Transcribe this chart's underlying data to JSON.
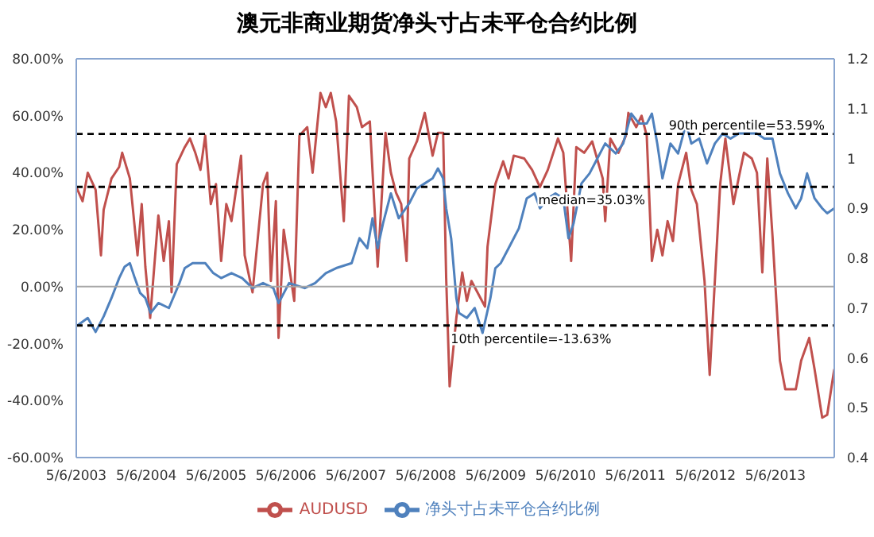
{
  "chart_data": {
    "type": "line",
    "title": "澳元非商业期货净头寸占未平仓合约比例",
    "xlim": [
      "2003-05-06",
      "2014-03-10"
    ],
    "xticks": [
      {
        "value": "2003-05-06",
        "label": "5/6/2003"
      },
      {
        "value": "2004-05-06",
        "label": "5/6/2004"
      },
      {
        "value": "2005-05-06",
        "label": "5/6/2005"
      },
      {
        "value": "2006-05-06",
        "label": "5/6/2006"
      },
      {
        "value": "2007-05-06",
        "label": "5/6/2007"
      },
      {
        "value": "2008-05-06",
        "label": "5/6/2008"
      },
      {
        "value": "2009-05-06",
        "label": "5/6/2009"
      },
      {
        "value": "2010-05-06",
        "label": "5/6/2010"
      },
      {
        "value": "2011-05-06",
        "label": "5/6/2011"
      },
      {
        "value": "2012-05-06",
        "label": "5/6/2012"
      },
      {
        "value": "2013-05-06",
        "label": "5/6/2013"
      }
    ],
    "ylim": [
      -60,
      80
    ],
    "yticks": [
      {
        "value": -60,
        "label": "-60.00%"
      },
      {
        "value": -40,
        "label": "-40.00%"
      },
      {
        "value": -20,
        "label": "-20.00%"
      },
      {
        "value": 0,
        "label": "0.00%"
      },
      {
        "value": 20,
        "label": "20.00%"
      },
      {
        "value": 40,
        "label": "40.00%"
      },
      {
        "value": 60,
        "label": "60.00%"
      },
      {
        "value": 80,
        "label": "80.00%"
      }
    ],
    "y2lim": [
      0.4,
      1.2
    ],
    "y2ticks": [
      0.4,
      0.5,
      0.6,
      0.7,
      0.8,
      0.9,
      1,
      1.1,
      1.2
    ],
    "legend": "bottom",
    "marker": "none",
    "line_style": "solid",
    "ref_lines": [
      {
        "axis": "y",
        "value": 53.59,
        "label": "90th percentile=53.59%",
        "color": "#000000",
        "line_style": "dashed"
      },
      {
        "axis": "y",
        "value": 35.03,
        "label": "median=35.03%",
        "color": "#000000",
        "line_style": "dashed"
      },
      {
        "axis": "y",
        "value": -13.63,
        "label": "10th percentile=-13.63%",
        "color": "#000000",
        "line_style": "dashed"
      },
      {
        "axis": "y",
        "value": 0,
        "color": "#a6a6a6",
        "line_style": "solid"
      }
    ],
    "series": [
      {
        "name": "AUDUSD",
        "color": "#c0504d",
        "axis": "y",
        "x": [
          "2003-05-06",
          "2003-06-08",
          "2003-07-05",
          "2003-08-15",
          "2003-09-12",
          "2003-09-26",
          "2003-11-06",
          "2003-12-16",
          "2004-01-01",
          "2004-02-10",
          "2004-03-21",
          "2004-04-12",
          "2004-05-01",
          "2004-05-26",
          "2004-07-08",
          "2004-08-05",
          "2004-09-01",
          "2004-09-15",
          "2004-10-12",
          "2004-11-23",
          "2004-12-20",
          "2005-01-17",
          "2005-02-13",
          "2005-03-10",
          "2005-04-08",
          "2005-05-05",
          "2005-06-01",
          "2005-06-28",
          "2005-07-25",
          "2005-09-13",
          "2005-10-02",
          "2005-11-12",
          "2006-01-06",
          "2006-01-28",
          "2006-02-16",
          "2006-03-14",
          "2006-03-28",
          "2006-04-24",
          "2006-06-18",
          "2006-07-15",
          "2006-08-25",
          "2006-09-22",
          "2006-11-02",
          "2006-11-30",
          "2006-12-26",
          "2007-01-23",
          "2007-03-04",
          "2007-03-31",
          "2007-05-11",
          "2007-06-07",
          "2007-07-18",
          "2007-08-28",
          "2007-10-08",
          "2007-11-05",
          "2007-12-02",
          "2007-12-29",
          "2008-01-26",
          "2008-02-09",
          "2008-03-20",
          "2008-04-30",
          "2008-06-10",
          "2008-07-08",
          "2008-08-04",
          "2008-08-20",
          "2008-09-07",
          "2008-10-12",
          "2008-11-12",
          "2008-12-06",
          "2008-12-30",
          "2009-03-11",
          "2009-03-24",
          "2009-05-04",
          "2009-06-14",
          "2009-07-12",
          "2009-08-08",
          "2009-10-02",
          "2009-11-12",
          "2009-12-23",
          "2010-02-02",
          "2010-03-27",
          "2010-04-24",
          "2010-06-04",
          "2010-07-01",
          "2010-08-11",
          "2010-09-22",
          "2010-11-16",
          "2010-11-29",
          "2010-12-26",
          "2011-02-06",
          "2011-03-17",
          "2011-03-30",
          "2011-05-10",
          "2011-06-07",
          "2011-07-04",
          "2011-07-31",
          "2011-08-28",
          "2011-09-24",
          "2011-10-21",
          "2011-11-18",
          "2011-12-15",
          "2012-01-26",
          "2012-02-22",
          "2012-03-22",
          "2012-05-01",
          "2012-05-28",
          "2012-06-24",
          "2012-07-22",
          "2012-08-18",
          "2012-09-29",
          "2012-10-26",
          "2012-11-23",
          "2013-01-03",
          "2013-01-30",
          "2013-02-27",
          "2013-03-25",
          "2013-04-21",
          "2013-05-30",
          "2013-06-27",
          "2013-08-21",
          "2013-09-18",
          "2013-10-30",
          "2013-11-27",
          "2014-01-06",
          "2014-02-01",
          "2014-03-10"
        ],
        "values": [
          35,
          30,
          40,
          34,
          11,
          27,
          38,
          42,
          47,
          38,
          11,
          29,
          7,
          -11,
          25,
          9,
          23,
          -2,
          43,
          49,
          52,
          47,
          41,
          53,
          29,
          36,
          9,
          29,
          23,
          46,
          11,
          -2,
          36,
          40,
          2,
          30,
          -18,
          20,
          -5,
          53,
          56,
          40,
          68,
          63,
          68,
          58,
          23,
          67,
          63,
          56,
          58,
          7,
          54,
          40,
          33,
          29,
          9,
          45,
          51,
          61,
          46,
          54,
          54,
          3,
          -35,
          -11,
          5,
          -5,
          2,
          -7,
          14,
          36,
          44,
          38,
          46,
          45,
          41,
          35,
          41,
          52,
          47,
          9,
          49,
          47,
          51,
          38,
          23,
          52,
          47,
          53,
          61,
          56,
          60,
          53,
          9,
          20,
          11,
          23,
          16,
          36,
          47,
          34,
          29,
          2,
          -31,
          2,
          36,
          52,
          29,
          38,
          47,
          45,
          40,
          5,
          45,
          18,
          -26,
          -36,
          -36,
          -26,
          -18,
          -29,
          -46,
          -45,
          -29
        ]
      },
      {
        "name": "净头寸占未平仓合约比例",
        "color": "#4f81bd",
        "axis": "y2",
        "x": [
          "2003-05-12",
          "2003-07-05",
          "2003-08-15",
          "2003-09-26",
          "2003-11-06",
          "2003-12-16",
          "2004-01-14",
          "2004-02-10",
          "2004-03-07",
          "2004-04-04",
          "2004-05-01",
          "2004-05-28",
          "2004-07-08",
          "2004-09-01",
          "2004-10-26",
          "2004-11-23",
          "2005-01-03",
          "2005-03-10",
          "2005-04-21",
          "2005-06-01",
          "2005-07-25",
          "2005-09-19",
          "2005-11-12",
          "2006-01-06",
          "2006-03-01",
          "2006-03-28",
          "2006-05-22",
          "2006-08-12",
          "2006-10-05",
          "2006-11-30",
          "2007-01-23",
          "2007-04-14",
          "2007-05-25",
          "2007-07-05",
          "2007-08-01",
          "2007-08-28",
          "2007-09-25",
          "2007-11-05",
          "2007-12-16",
          "2008-02-09",
          "2008-03-20",
          "2008-04-30",
          "2008-06-10",
          "2008-07-08",
          "2008-08-04",
          "2008-08-20",
          "2008-09-15",
          "2008-10-12",
          "2008-10-26",
          "2008-12-06",
          "2009-01-16",
          "2009-02-26",
          "2009-04-08",
          "2009-05-04",
          "2009-06-01",
          "2009-07-12",
          "2009-09-04",
          "2009-10-15",
          "2009-11-25",
          "2009-12-23",
          "2010-02-02",
          "2010-03-14",
          "2010-04-24",
          "2010-05-21",
          "2010-06-17",
          "2010-07-28",
          "2010-09-08",
          "2010-10-19",
          "2010-11-29",
          "2011-01-23",
          "2011-03-03",
          "2011-04-14",
          "2011-05-25",
          "2011-07-04",
          "2011-07-31",
          "2011-08-28",
          "2011-09-24",
          "2011-11-05",
          "2011-12-15",
          "2012-01-26",
          "2012-02-22",
          "2012-04-03",
          "2012-05-14",
          "2012-06-24",
          "2012-08-04",
          "2012-09-14",
          "2012-10-26",
          "2012-12-19",
          "2013-01-30",
          "2013-03-10",
          "2013-04-21",
          "2013-05-30",
          "2013-07-11",
          "2013-08-21",
          "2013-09-18",
          "2013-10-19",
          "2013-11-27",
          "2014-01-06",
          "2014-02-01",
          "2014-03-10"
        ],
        "values": [
          0.665,
          0.68,
          0.652,
          0.683,
          0.72,
          0.76,
          0.783,
          0.79,
          0.76,
          0.73,
          0.72,
          0.69,
          0.71,
          0.7,
          0.75,
          0.78,
          0.79,
          0.79,
          0.77,
          0.76,
          0.77,
          0.76,
          0.74,
          0.75,
          0.74,
          0.71,
          0.75,
          0.74,
          0.75,
          0.77,
          0.78,
          0.79,
          0.84,
          0.82,
          0.88,
          0.82,
          0.87,
          0.93,
          0.88,
          0.91,
          0.94,
          0.95,
          0.96,
          0.98,
          0.96,
          0.9,
          0.84,
          0.72,
          0.69,
          0.68,
          0.7,
          0.65,
          0.72,
          0.78,
          0.79,
          0.82,
          0.86,
          0.92,
          0.93,
          0.9,
          0.92,
          0.93,
          0.92,
          0.84,
          0.87,
          0.95,
          0.97,
          1.0,
          1.03,
          1.01,
          1.03,
          1.09,
          1.07,
          1.07,
          1.09,
          1.03,
          0.96,
          1.03,
          1.01,
          1.07,
          1.03,
          1.04,
          0.99,
          1.03,
          1.05,
          1.04,
          1.05,
          1.05,
          1.05,
          1.04,
          1.04,
          0.97,
          0.93,
          0.9,
          0.92,
          0.97,
          0.92,
          0.9,
          0.89,
          0.9
        ]
      }
    ]
  }
}
